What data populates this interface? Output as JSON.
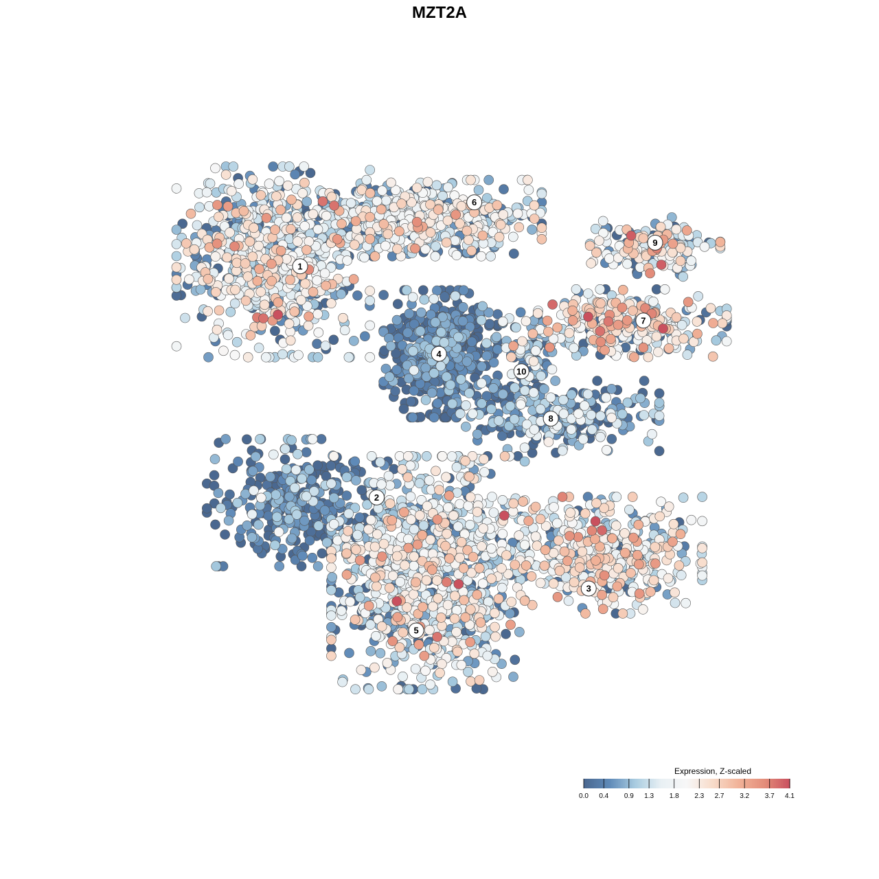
{
  "chart_data": {
    "type": "scatter",
    "title": "MZT2A",
    "xlabel": "",
    "ylabel": "",
    "xlim": [
      -40,
      40
    ],
    "ylim": [
      -40,
      40
    ],
    "grid": false,
    "point_border_color": "#555555",
    "colorscale": {
      "title": "Expression, Z-scaled",
      "min": 0.0,
      "max": 4.1,
      "ticks": [
        0.0,
        0.4,
        0.9,
        1.3,
        1.8,
        2.3,
        2.7,
        3.2,
        3.7,
        4.1
      ],
      "tick_labels": [
        "0.0",
        "0.4",
        "0.9",
        "1.3",
        "1.8",
        "2.3",
        "2.7",
        "3.2",
        "3.7",
        "4.1"
      ],
      "colors": [
        "#4a6890",
        "#5f8ab8",
        "#a9cce0",
        "#e8f0f4",
        "#f7f7f7",
        "#f8dccb",
        "#f1b399",
        "#e48e7b",
        "#c9505e"
      ],
      "legend_position": "bottom-right"
    },
    "clusters": [
      {
        "label": "1",
        "cx": -21.4,
        "cy": 19.5,
        "sx": 9.5,
        "sy": 9.0,
        "n": 700,
        "mean": 1.65,
        "sd": 0.85,
        "shape": "blob"
      },
      {
        "label": "6",
        "cx": -4.0,
        "cy": 24.5,
        "sx": 12.0,
        "sy": 3.6,
        "n": 520,
        "mean": 1.55,
        "sd": 0.7,
        "shape": "blob"
      },
      {
        "label": "4",
        "cx": -1.5,
        "cy": 9.0,
        "sx": 5.6,
        "sy": 6.0,
        "n": 520,
        "mean": 0.3,
        "sd": 0.45,
        "shape": "blob"
      },
      {
        "label": "10",
        "cx": 9.2,
        "cy": 8.8,
        "sx": 2.4,
        "sy": 3.3,
        "n": 60,
        "mean": 0.9,
        "sd": 0.6,
        "shape": "blob"
      },
      {
        "label": "9",
        "cx": 24.0,
        "cy": 21.2,
        "sx": 6.4,
        "sy": 2.8,
        "n": 170,
        "mean": 1.9,
        "sd": 0.85,
        "shape": "blob"
      },
      {
        "label": "7",
        "cx": 19.2,
        "cy": 12.5,
        "sx": 11.0,
        "sy": 3.2,
        "n": 300,
        "mean": 1.95,
        "sd": 0.9,
        "shape": "blob"
      },
      {
        "label": "8",
        "cx": 13.0,
        "cy": 1.8,
        "sx": 9.5,
        "sy": 3.4,
        "n": 260,
        "mean": 0.7,
        "sd": 0.65,
        "shape": "blob"
      },
      {
        "label": "2",
        "cx": -19.0,
        "cy": -8.0,
        "sx": 8.5,
        "sy": 6.0,
        "n": 330,
        "mean": 0.45,
        "sd": 0.55,
        "shape": "blob"
      },
      {
        "label": "3",
        "cx": 17.5,
        "cy": -14.0,
        "sx": 10.0,
        "sy": 5.5,
        "n": 450,
        "mean": 1.95,
        "sd": 0.75,
        "shape": "blob"
      },
      {
        "label": "5",
        "cx": -3.0,
        "cy": -16.0,
        "sx": 9.5,
        "sy": 11.0,
        "n": 1050,
        "mean": 1.5,
        "sd": 0.85,
        "shape": "blob"
      }
    ],
    "label_positions": [
      {
        "label": "1",
        "x": -18.2,
        "y": 19.0
      },
      {
        "label": "6",
        "x": 2.5,
        "y": 26.3
      },
      {
        "label": "4",
        "x": -1.7,
        "y": 9.0
      },
      {
        "label": "10",
        "x": 8.1,
        "y": 7.0
      },
      {
        "label": "9",
        "x": 24.0,
        "y": 21.7
      },
      {
        "label": "7",
        "x": 22.6,
        "y": 12.8
      },
      {
        "label": "8",
        "x": 11.6,
        "y": 1.6
      },
      {
        "label": "2",
        "x": -9.1,
        "y": -7.4
      },
      {
        "label": "3",
        "x": 16.1,
        "y": -17.8
      },
      {
        "label": "5",
        "x": -4.4,
        "y": -22.6
      }
    ]
  }
}
